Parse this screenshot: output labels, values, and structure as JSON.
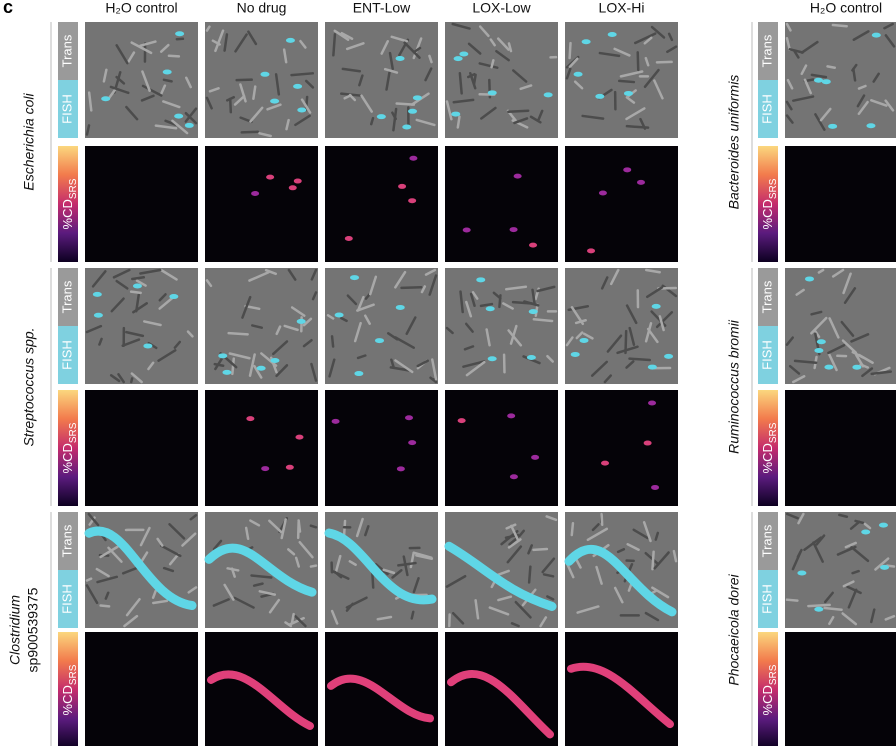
{
  "panel_label": "c",
  "columns": [
    "H₂O control",
    "No drug",
    "ENT-Low",
    "LOX-Low",
    "LOX-Hi"
  ],
  "right_column": "H₂O control",
  "channel_labels": {
    "trans": "Trans",
    "fish": "FISH",
    "srs": "%CD",
    "srs_sub": "SRS"
  },
  "left_rows": [
    {
      "species": "Escherichia coli"
    },
    {
      "species": "Streptococcus spp."
    },
    {
      "species": "Clostridium",
      "strain": "sp900539375"
    }
  ],
  "right_rows": [
    {
      "species": "Bacteroides uniformis"
    },
    {
      "species": "Ruminococcus bromii"
    },
    {
      "species": "Phocaeicola dorei"
    }
  ]
}
